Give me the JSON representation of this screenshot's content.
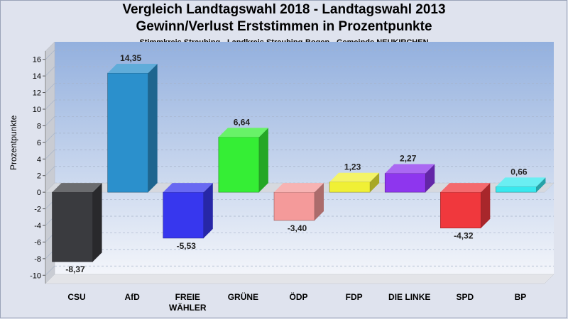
{
  "title": "Vergleich Landtagswahl 2018 - Landtagswahl 2013",
  "subtitle": "Gewinn/Verlust Erststimmen in Prozentpunkte",
  "subsubtitle": "Stimmkreis Straubing - Landkreis Straubing-Bogen - Gemeinde NEUKIRCHEN",
  "chart_data": {
    "type": "bar",
    "title": "Vergleich Landtagswahl 2018 - Landtagswahl 2013",
    "subtitle": "Gewinn/Verlust Erststimmen in Prozentpunkte",
    "ylabel": "Prozentpunkte",
    "xlabel": "",
    "ylim": [
      -11,
      17
    ],
    "yticks": [
      -10,
      -8,
      -6,
      -4,
      -2,
      0,
      2,
      4,
      6,
      8,
      10,
      12,
      14,
      16
    ],
    "grid": true,
    "categories": [
      {
        "label": [
          "CSU"
        ],
        "value": -8.37,
        "value_label": "-8,37",
        "color": "#3a3b3f"
      },
      {
        "label": [
          "AfD"
        ],
        "value": 14.35,
        "value_label": "14,35",
        "color": "#2b90cc"
      },
      {
        "label": [
          "FREIE",
          "WÄHLER"
        ],
        "value": -5.53,
        "value_label": "-5,53",
        "color": "#3737ee"
      },
      {
        "label": [
          "GRÜNE"
        ],
        "value": 6.64,
        "value_label": "6,64",
        "color": "#35ee35"
      },
      {
        "label": [
          "ÖDP"
        ],
        "value": -3.4,
        "value_label": "-3,40",
        "color": "#f49a9a"
      },
      {
        "label": [
          "FDP"
        ],
        "value": 1.23,
        "value_label": "1,23",
        "color": "#f0f035"
      },
      {
        "label": [
          "DIE LINKE"
        ],
        "value": 2.27,
        "value_label": "2,27",
        "color": "#8e36ee"
      },
      {
        "label": [
          "SPD"
        ],
        "value": -4.32,
        "value_label": "-4,32",
        "color": "#f0383d"
      },
      {
        "label": [
          "BP"
        ],
        "value": 0.66,
        "value_label": "0,66",
        "color": "#38e8ee"
      }
    ]
  }
}
